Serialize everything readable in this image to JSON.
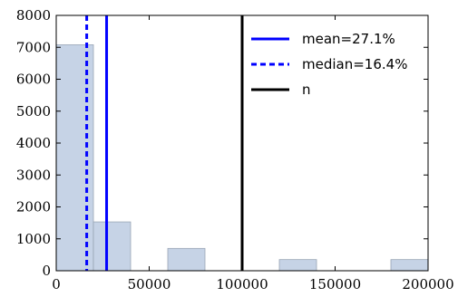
{
  "chart_data": {
    "type": "bar",
    "xlim": [
      0,
      200000
    ],
    "ylim": [
      0,
      8000
    ],
    "x_ticks": [
      0,
      50000,
      100000,
      150000,
      200000
    ],
    "x_tick_labels": [
      "0",
      "50000",
      "100000",
      "150000",
      "200000"
    ],
    "y_ticks": [
      0,
      1000,
      2000,
      3000,
      4000,
      5000,
      6000,
      7000,
      8000
    ],
    "y_tick_labels": [
      "0",
      "1000",
      "2000",
      "3000",
      "4000",
      "5000",
      "6000",
      "7000",
      "8000"
    ],
    "bin_edges": [
      0,
      20000,
      40000,
      60000,
      80000,
      100000,
      120000,
      140000,
      160000,
      180000,
      200000
    ],
    "counts": [
      7080,
      1530,
      0,
      700,
      0,
      0,
      350,
      0,
      0,
      350
    ],
    "bar_color": "#c6d3e6",
    "bar_edge_color": "#9aa6b5",
    "vlines": [
      {
        "label": "mean=27.1%",
        "x": 27100,
        "color": "#0000ff",
        "style": "solid"
      },
      {
        "label": "median=16.4%",
        "x": 16400,
        "color": "#0000ff",
        "style": "dotted"
      },
      {
        "label": "n",
        "x": 100000,
        "color": "#000000",
        "style": "solid"
      }
    ],
    "legend_position": "top-right",
    "grid": false
  }
}
